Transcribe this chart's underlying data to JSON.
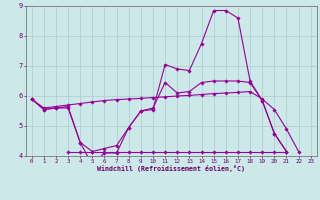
{
  "xlabel": "Windchill (Refroidissement éolien,°C)",
  "background_color": "#cce8e8",
  "grid_color": "#aacccc",
  "line_color": "#990099",
  "xlim": [
    -0.5,
    23.5
  ],
  "ylim": [
    4,
    9
  ],
  "xticks": [
    0,
    1,
    2,
    3,
    4,
    5,
    6,
    7,
    8,
    9,
    10,
    11,
    12,
    13,
    14,
    15,
    16,
    17,
    18,
    19,
    20,
    21,
    22,
    23
  ],
  "yticks": [
    4,
    5,
    6,
    7,
    8,
    9
  ],
  "line1_zigzag": [
    5.9,
    5.55,
    5.6,
    5.6,
    4.45,
    3.7,
    4.1,
    4.1,
    4.95,
    5.5,
    5.55,
    7.05,
    6.9,
    6.85,
    7.75,
    8.85,
    8.85,
    8.6,
    6.5,
    5.85,
    4.75,
    4.15
  ],
  "line2_moderate": [
    5.9,
    5.55,
    5.6,
    5.65,
    4.45,
    4.15,
    4.25,
    4.35,
    4.95,
    5.5,
    5.6,
    6.45,
    6.1,
    6.15,
    6.45,
    6.5,
    6.5,
    6.5,
    6.45,
    5.85,
    4.75,
    4.15
  ],
  "line3_rising": [
    5.9,
    5.6,
    5.65,
    5.7,
    5.75,
    5.8,
    5.85,
    5.88,
    5.9,
    5.92,
    5.95,
    5.97,
    6.0,
    6.02,
    6.05,
    6.08,
    6.1,
    6.12,
    6.15,
    5.9,
    5.55,
    4.9,
    4.15
  ],
  "line4_flat": [
    null,
    null,
    null,
    4.15,
    4.15,
    4.15,
    4.15,
    4.15,
    4.15,
    4.15,
    4.15,
    4.15,
    4.15,
    4.15,
    4.15,
    4.15,
    4.15,
    4.15,
    4.15,
    4.15,
    4.15,
    4.15
  ]
}
